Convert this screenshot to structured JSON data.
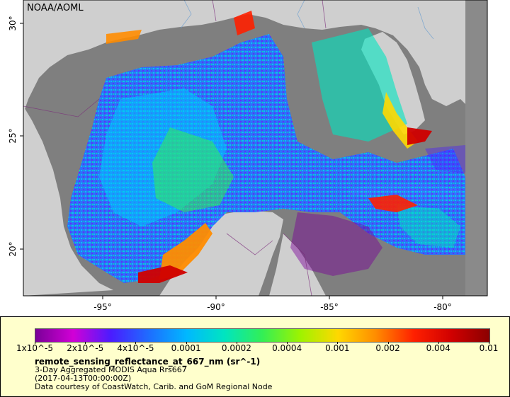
{
  "map": {
    "credit": "NOAA/AOML",
    "lat_ticks": [
      "30°",
      "25°",
      "20°"
    ],
    "lon_ticks": [
      "-95°",
      "-90°",
      "-85°",
      "-80°"
    ]
  },
  "legend": {
    "colorbar_ticks": [
      "1x10^-5",
      "2x10^-5",
      "4x10^-5",
      "0.0001",
      "0.0002",
      "0.0004",
      "0.001",
      "0.002",
      "0.004",
      "0.01"
    ],
    "title": "remote_sensing_reflectance_at_667_nm (sr^-1)",
    "product": "3-Day Aggregated MODIS Aqua Rrs667",
    "date": "(2017-04-13T00:00:00Z)",
    "source": "Data courtesy of CoastWatch, Carib. and GoM Regional Node"
  },
  "colors": {
    "land": "#cfcfcf",
    "no_data": "#7f7f7f",
    "panel": "#ffffcc",
    "scale": [
      "#7a0098",
      "#d100d6",
      "#4a1cff",
      "#1e6dff",
      "#00b8ff",
      "#00e5c0",
      "#33ef55",
      "#9ef300",
      "#ffd800",
      "#ff8c00",
      "#ff2000",
      "#d00000",
      "#8b0000"
    ]
  }
}
